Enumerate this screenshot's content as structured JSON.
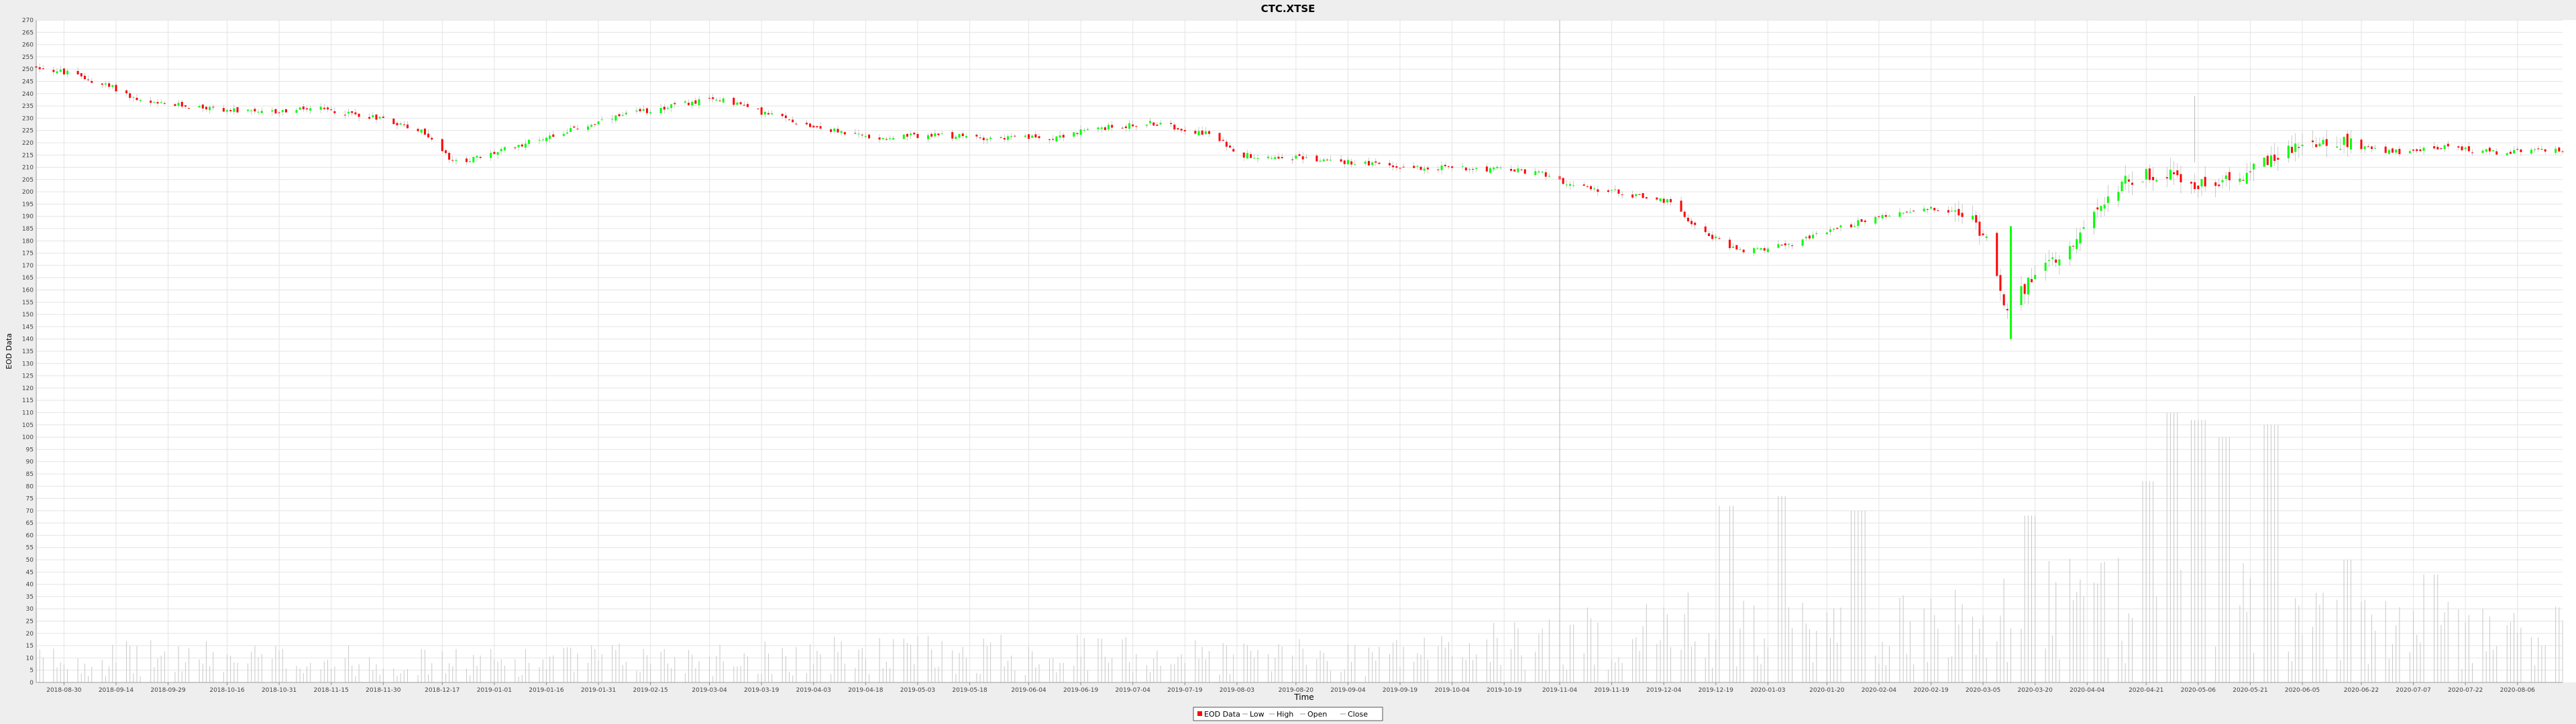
{
  "chart_data": {
    "type": "candlestick",
    "title": "CTC.XTSE",
    "xlabel": "Time",
    "ylabel": "EOD Data",
    "ylim": [
      0,
      270
    ],
    "y_ticks": [
      0,
      5,
      10,
      15,
      20,
      25,
      30,
      35,
      40,
      45,
      50,
      55,
      60,
      65,
      70,
      75,
      80,
      85,
      90,
      95,
      100,
      105,
      110,
      115,
      120,
      125,
      130,
      135,
      140,
      145,
      150,
      155,
      160,
      165,
      170,
      175,
      180,
      185,
      190,
      195,
      200,
      205,
      210,
      215,
      220,
      225,
      230,
      235,
      240,
      245,
      250,
      255,
      260,
      265,
      270
    ],
    "x_range": [
      "2018-08-22",
      "2020-08-19"
    ],
    "x_ticks": [
      "2018-08-30",
      "2018-09-14",
      "2018-09-29",
      "2018-10-16",
      "2018-10-31",
      "2018-11-15",
      "2018-11-30",
      "2018-12-17",
      "2019-01-01",
      "2019-01-16",
      "2019-01-31",
      "2019-02-15",
      "2019-03-04",
      "2019-03-19",
      "2019-04-03",
      "2019-04-18",
      "2019-05-03",
      "2019-05-18",
      "2019-06-04",
      "2019-06-19",
      "2019-07-04",
      "2019-07-19",
      "2019-08-03",
      "2019-08-20",
      "2019-09-04",
      "2019-09-19",
      "2019-10-04",
      "2019-10-19",
      "2019-11-04",
      "2019-11-19",
      "2019-12-04",
      "2019-12-19",
      "2020-01-03",
      "2020-01-20",
      "2020-02-04",
      "2020-02-19",
      "2020-03-05",
      "2020-03-20",
      "2020-04-04",
      "2020-04-21",
      "2020-05-06",
      "2020-05-21",
      "2020-06-05",
      "2020-06-22",
      "2020-07-07",
      "2020-07-22",
      "2020-08-06"
    ],
    "crosshair_x": "2019-11-04",
    "grid": true,
    "legend_position": "bottom",
    "legend": [
      "EOD Data",
      "Low",
      "High",
      "Open",
      "Close"
    ],
    "colors": {
      "up": "#00ff00",
      "down": "#ff0000",
      "volume": "#c8c8c8",
      "grid": "#e4e4e4"
    },
    "price_path": [
      [
        "2018-08-22",
        251
      ],
      [
        "2018-09-01",
        248
      ],
      [
        "2018-09-14",
        242
      ],
      [
        "2018-09-22",
        236
      ],
      [
        "2018-10-05",
        235
      ],
      [
        "2018-10-25",
        232
      ],
      [
        "2018-11-10",
        234
      ],
      [
        "2018-11-30",
        230
      ],
      [
        "2018-12-12",
        224
      ],
      [
        "2018-12-20",
        212
      ],
      [
        "2018-12-28",
        214
      ],
      [
        "2019-01-10",
        220
      ],
      [
        "2019-01-25",
        226
      ],
      [
        "2019-02-10",
        232
      ],
      [
        "2019-02-25",
        236
      ],
      [
        "2019-03-08",
        238
      ],
      [
        "2019-03-20",
        232
      ],
      [
        "2019-04-05",
        226
      ],
      [
        "2019-04-20",
        222
      ],
      [
        "2019-05-05",
        223
      ],
      [
        "2019-05-25",
        222
      ],
      [
        "2019-06-10",
        222
      ],
      [
        "2019-06-25",
        226
      ],
      [
        "2019-07-10",
        228
      ],
      [
        "2019-07-25",
        224
      ],
      [
        "2019-08-05",
        215
      ],
      [
        "2019-08-20",
        214
      ],
      [
        "2019-09-05",
        212
      ],
      [
        "2019-09-20",
        210
      ],
      [
        "2019-10-05",
        210
      ],
      [
        "2019-10-20",
        209
      ],
      [
        "2019-11-01",
        207
      ],
      [
        "2019-11-08",
        202
      ],
      [
        "2019-11-20",
        200
      ],
      [
        "2019-12-05",
        196
      ],
      [
        "2019-12-15",
        184
      ],
      [
        "2019-12-25",
        176
      ],
      [
        "2020-01-08",
        178
      ],
      [
        "2020-01-20",
        184
      ],
      [
        "2020-02-05",
        190
      ],
      [
        "2020-02-20",
        193
      ],
      [
        "2020-03-01",
        190
      ],
      [
        "2020-03-07",
        180
      ],
      [
        "2020-03-12",
        150
      ],
      [
        "2020-03-18",
        163
      ],
      [
        "2020-03-25",
        172
      ],
      [
        "2020-04-05",
        188
      ],
      [
        "2020-04-15",
        205
      ],
      [
        "2020-04-28",
        208
      ],
      [
        "2020-05-08",
        202
      ],
      [
        "2020-05-20",
        208
      ],
      [
        "2020-06-01",
        218
      ],
      [
        "2020-06-15",
        220
      ],
      [
        "2020-07-01",
        216
      ],
      [
        "2020-07-15",
        218
      ],
      [
        "2020-08-01",
        216
      ],
      [
        "2020-08-19",
        217
      ]
    ],
    "volume_path": [
      [
        "2018-08-22",
        9
      ],
      [
        "2018-10-01",
        10
      ],
      [
        "2018-12-20",
        8
      ],
      [
        "2019-03-01",
        10
      ],
      [
        "2019-06-01",
        12
      ],
      [
        "2019-09-01",
        10
      ],
      [
        "2019-11-01",
        16
      ],
      [
        "2019-12-15",
        22
      ],
      [
        "2020-02-01",
        18
      ],
      [
        "2020-03-15",
        28
      ],
      [
        "2020-04-20",
        30
      ],
      [
        "2020-05-15",
        32
      ],
      [
        "2020-06-15",
        20
      ],
      [
        "2020-08-19",
        18
      ]
    ],
    "volume_spikes": [
      [
        "2019-12-22",
        72
      ],
      [
        "2020-01-06",
        76
      ],
      [
        "2020-01-29",
        70
      ],
      [
        "2020-03-19",
        68
      ],
      [
        "2020-04-21",
        82
      ],
      [
        "2020-04-28",
        110
      ],
      [
        "2020-05-06",
        107
      ],
      [
        "2020-05-14",
        100
      ],
      [
        "2020-05-27",
        105
      ],
      [
        "2020-06-19",
        50
      ],
      [
        "2020-07-12",
        44
      ]
    ]
  }
}
